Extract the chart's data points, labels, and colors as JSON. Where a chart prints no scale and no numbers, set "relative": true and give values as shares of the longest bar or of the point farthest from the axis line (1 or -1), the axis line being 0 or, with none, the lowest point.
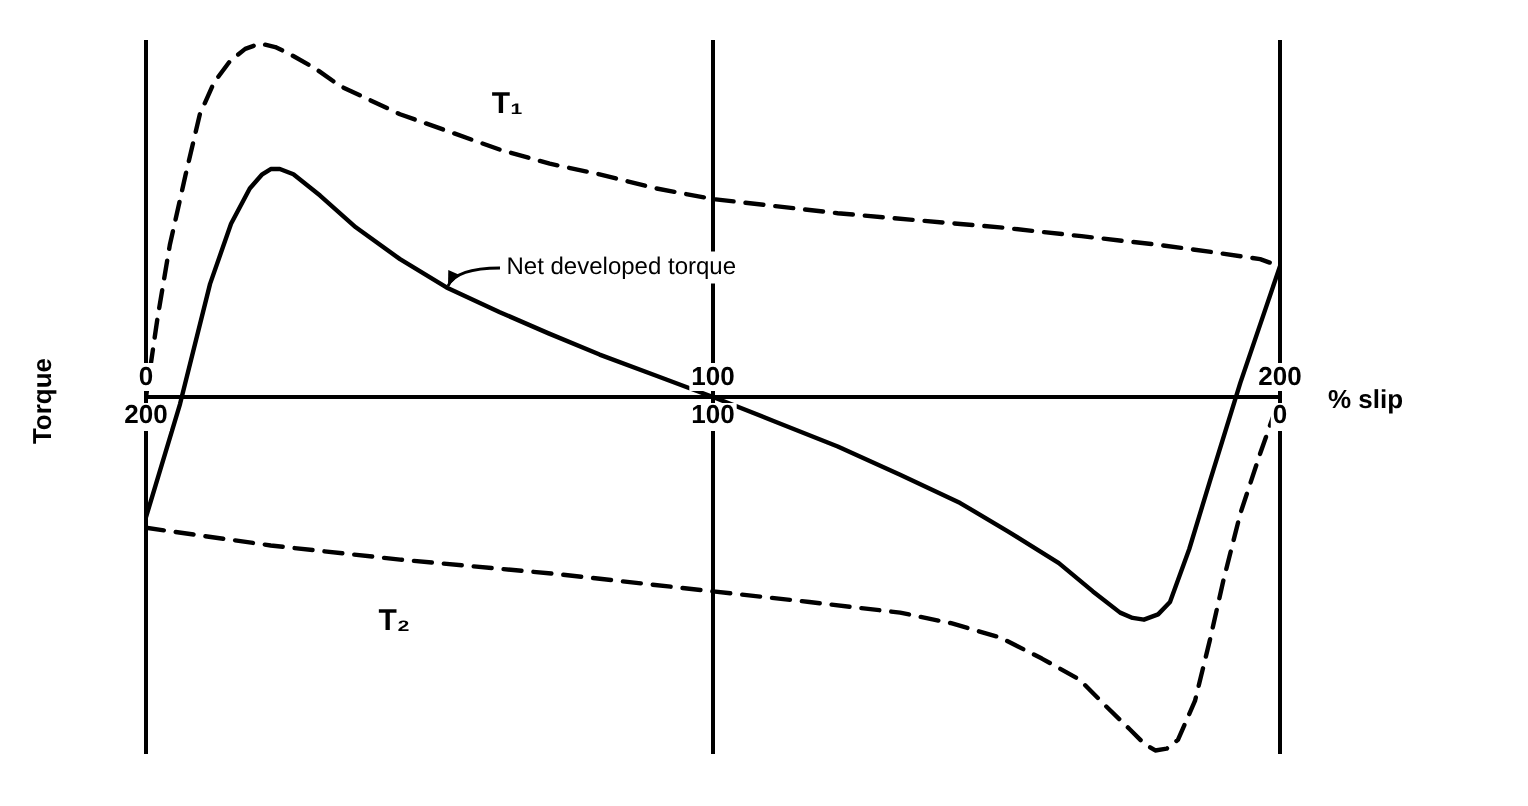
{
  "chart_data": {
    "type": "line",
    "relative": true,
    "xlabel": "% slip",
    "ylabel": "Torque",
    "xlim": [
      0,
      200
    ],
    "xticks": [
      0,
      100,
      200
    ],
    "x2lim": [
      200,
      0
    ],
    "x2ticks": [
      200,
      100,
      0
    ],
    "annotations": [
      {
        "text": "Net developed torque",
        "x": 53,
        "y": 0.31
      }
    ],
    "grid": "x",
    "legend": false,
    "marker": "none",
    "series": [
      {
        "name": "T₁",
        "color": "#000000",
        "line_style": "dashed",
        "x": [
          0,
          2,
          4.2,
          7,
          9.5,
          12,
          14.8,
          17.5,
          20.1,
          22.8,
          25.4,
          29.8,
          34.2,
          39.5,
          44.8,
          53.6,
          62.4,
          71.2,
          80,
          90,
          100,
          111,
          122,
          136,
          150.6,
          165,
          178.8,
          188,
          196.5,
          200
        ],
        "values": [
          0,
          0.22,
          0.43,
          0.63,
          0.8,
          0.89,
          0.95,
          0.985,
          1.0,
          0.99,
          0.97,
          0.93,
          0.88,
          0.84,
          0.8,
          0.75,
          0.7,
          0.66,
          0.63,
          0.59,
          0.56,
          0.54,
          0.52,
          0.5,
          0.48,
          0.455,
          0.43,
          0.41,
          0.39,
          0.37
        ]
      },
      {
        "name": "T₂",
        "color": "#000000",
        "line_style": "dashed",
        "x": [
          0,
          22,
          44.8,
          72,
          100,
          117,
          133,
          142,
          150.6,
          158,
          164.7,
          169,
          173.5,
          176,
          178,
          180,
          182,
          185,
          187.6,
          190,
          193,
          196.5,
          200
        ],
        "values": [
          -0.37,
          -0.42,
          -0.46,
          -0.5,
          -0.55,
          -0.58,
          -0.61,
          -0.64,
          -0.68,
          -0.74,
          -0.8,
          -0.87,
          -0.94,
          -0.98,
          -1.0,
          -0.995,
          -0.97,
          -0.86,
          -0.69,
          -0.52,
          -0.33,
          -0.16,
          0
        ]
      },
      {
        "color": "#000000",
        "line_style": "solid",
        "x": [
          0,
          6,
          11.3,
          15,
          18.3,
          20.5,
          22,
          23.6,
          26,
          30.7,
          37,
          44.8,
          53,
          62.4,
          71,
          80,
          90,
          100,
          111,
          122,
          133,
          143.6,
          152,
          161,
          167,
          171.8,
          174,
          176,
          178.5,
          180.6,
          184,
          187.6,
          193,
          200
        ],
        "values": [
          -0.34,
          -0.02,
          0.32,
          0.49,
          0.59,
          0.63,
          0.645,
          0.645,
          0.63,
          0.57,
          0.48,
          0.39,
          0.31,
          0.24,
          0.18,
          0.12,
          0.06,
          0,
          -0.07,
          -0.14,
          -0.22,
          -0.3,
          -0.38,
          -0.47,
          -0.55,
          -0.61,
          -0.625,
          -0.63,
          -0.615,
          -0.58,
          -0.43,
          -0.24,
          0.04,
          0.37
        ]
      }
    ]
  }
}
